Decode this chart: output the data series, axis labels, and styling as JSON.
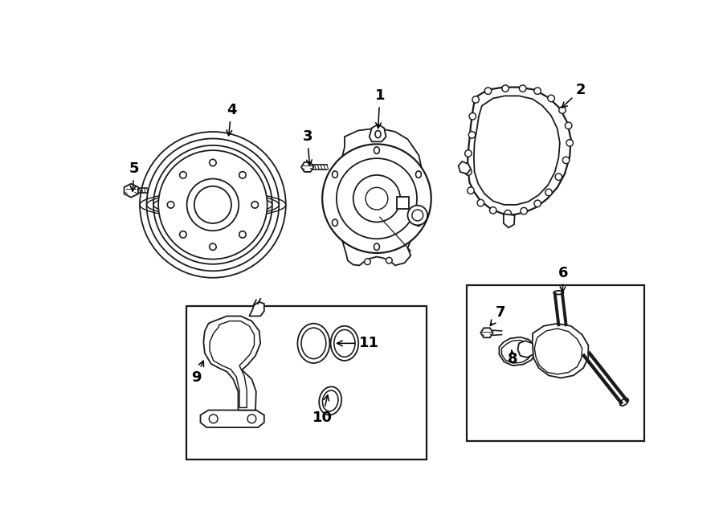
{
  "bg_color": "#ffffff",
  "line_color": "#1a1a1a",
  "line_width": 1.3,
  "label_fontsize": 13,
  "figsize": [
    9.0,
    6.61
  ],
  "dpi": 100
}
